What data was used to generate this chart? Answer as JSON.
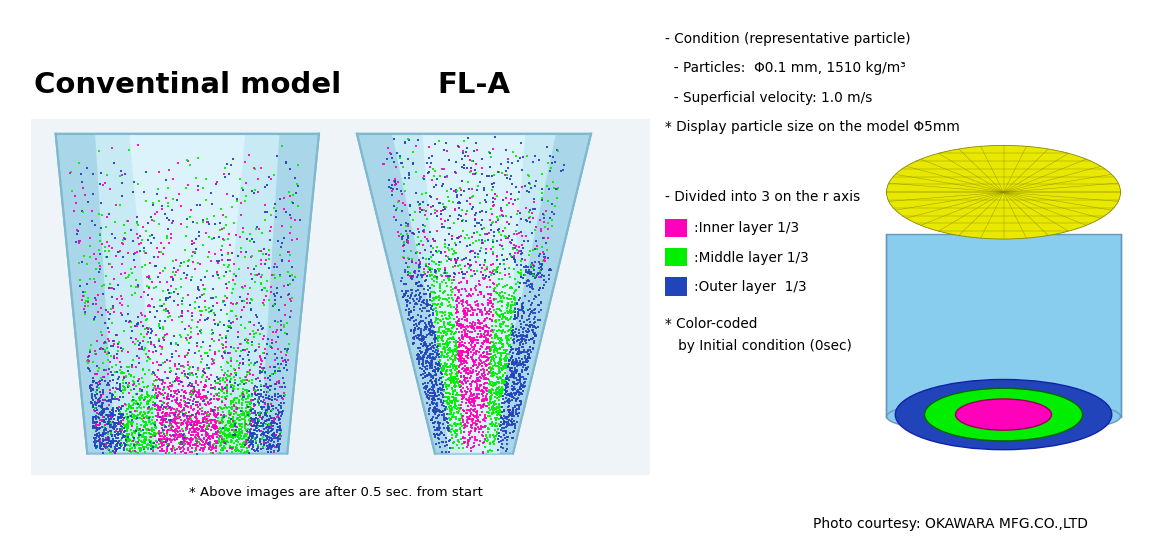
{
  "bg_color": "#ffffff",
  "panel_bg": "#ecf4f8",
  "title_left": "Conventinal model",
  "title_center": "FL-A",
  "title_fontsize": 21,
  "title_fontweight": "bold",
  "condition_lines": [
    "- Condition (representative particle)",
    "  - Particles:  Φ0.1 mm, 1510 kg/m³",
    "  - Superficial velocity: 1.0 m/s",
    "* Display particle size on the model Φ5mm"
  ],
  "legend_header": "- Divided into 3 on the r axis",
  "legend_items": [
    {
      "color": "#ff00bb",
      "label": ":Inner layer 1/3"
    },
    {
      "color": "#00ee00",
      "label": ":Middle layer 1/3"
    },
    {
      "color": "#2244bb",
      "label": ":Outer layer  1/3"
    }
  ],
  "color_coded_note": [
    "* Color-coded",
    "   by Initial condition (0sec)"
  ],
  "footnote": "* Above images are after 0.5 sec. from start",
  "photo_credit": "Photo courtesy: OKAWARA MFG.CO.,LTD",
  "inner_color": "#ff00bb",
  "middle_color": "#00ee00",
  "outer_color": "#2244bb",
  "vessel_bg_light": "#c8eaf5",
  "vessel_bg_mid": "#a8d8ee",
  "vessel_bg_dark": "#90c8e0",
  "vessel_center_bright": "#e8f8ff"
}
